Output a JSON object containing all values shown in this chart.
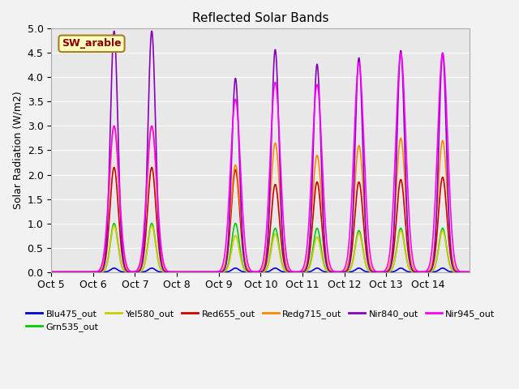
{
  "title": "Reflected Solar Bands",
  "ylabel": "Solar Radiation (W/m2)",
  "annotation": "SW_arable",
  "annotation_color": "#8B0000",
  "annotation_bg": "#FFFFC0",
  "annotation_border": "#A08020",
  "ylim": [
    0.0,
    5.0
  ],
  "yticks": [
    0.0,
    0.5,
    1.0,
    1.5,
    2.0,
    2.5,
    3.0,
    3.5,
    4.0,
    4.5,
    5.0
  ],
  "xtick_labels": [
    "Oct 5",
    "Oct 6",
    "Oct 7",
    "Oct 8",
    "Oct 9",
    "Oct 10",
    "Oct 11",
    "Oct 12",
    "Oct 13",
    "Oct 14"
  ],
  "series_order": [
    "Blu475_out",
    "Grn535_out",
    "Yel580_out",
    "Red655_out",
    "Redg715_out",
    "Nir840_out",
    "Nir945_out"
  ],
  "series": {
    "Blu475_out": {
      "color": "#0000CC",
      "linewidth": 1.2
    },
    "Grn535_out": {
      "color": "#00CC00",
      "linewidth": 1.2
    },
    "Yel580_out": {
      "color": "#CCCC00",
      "linewidth": 1.2
    },
    "Red655_out": {
      "color": "#CC0000",
      "linewidth": 1.2
    },
    "Redg715_out": {
      "color": "#FF8800",
      "linewidth": 1.2
    },
    "Nir840_out": {
      "color": "#8800BB",
      "linewidth": 1.2
    },
    "Nir945_out": {
      "color": "#FF00FF",
      "linewidth": 1.2
    }
  },
  "peak_centers": [
    1.5,
    2.4,
    4.4,
    5.35,
    6.35,
    7.35,
    8.35,
    9.35
  ],
  "peaks": {
    "Nir840_out": [
      4.95,
      4.95,
      3.98,
      4.57,
      4.27,
      4.4,
      4.55,
      4.5
    ],
    "Nir945_out": [
      3.0,
      3.0,
      3.55,
      3.9,
      3.85,
      4.3,
      4.5,
      4.5
    ],
    "Redg715_out": [
      3.0,
      3.0,
      2.2,
      2.65,
      2.4,
      2.6,
      2.75,
      2.7
    ],
    "Red655_out": [
      2.15,
      2.15,
      2.1,
      1.8,
      1.85,
      1.85,
      1.9,
      1.95
    ],
    "Grn535_out": [
      1.0,
      1.0,
      1.0,
      0.9,
      0.9,
      0.85,
      0.9,
      0.9
    ],
    "Yel580_out": [
      0.95,
      0.95,
      0.75,
      0.78,
      0.72,
      0.8,
      0.85,
      0.85
    ],
    "Blu475_out": [
      0.08,
      0.08,
      0.08,
      0.08,
      0.08,
      0.08,
      0.08,
      0.08
    ]
  },
  "peak_widths": {
    "Nir840_out": 0.09,
    "Nir945_out": 0.12,
    "Redg715_out": 0.11,
    "Red655_out": 0.1,
    "Grn535_out": 0.09,
    "Yel580_out": 0.09,
    "Blu475_out": 0.08
  },
  "bg_color": "#E8E8E8",
  "fig_color": "#F2F2F2",
  "grid_color": "#FFFFFF",
  "title_fontsize": 11,
  "legend_ncol": 6,
  "legend_fontsize": 8
}
